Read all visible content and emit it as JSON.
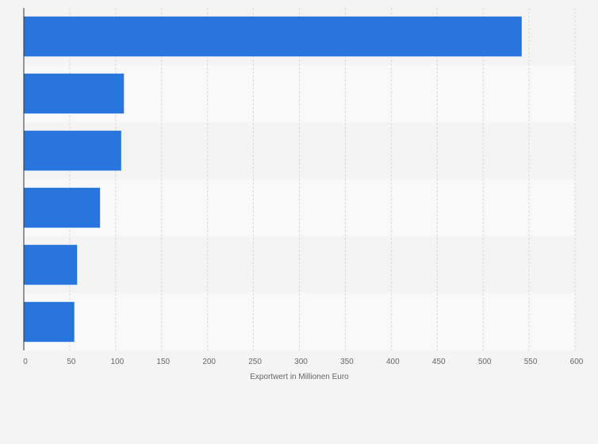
{
  "chart_data": {
    "type": "bar",
    "orientation": "horizontal",
    "categories": [
      "",
      "",
      "",
      "",
      "",
      ""
    ],
    "values": [
      542,
      109,
      106,
      83,
      58,
      55
    ],
    "xlabel": "Exportwert in Millionen Euro",
    "ylabel": "",
    "xlim": [
      0,
      600
    ],
    "x_ticks": [
      0,
      50,
      100,
      150,
      200,
      250,
      300,
      350,
      400,
      450,
      500,
      550,
      600
    ],
    "grid": true,
    "bar_color": "#2876dd",
    "band_colors": [
      "#f4f4f4",
      "#f9f9f9"
    ]
  }
}
